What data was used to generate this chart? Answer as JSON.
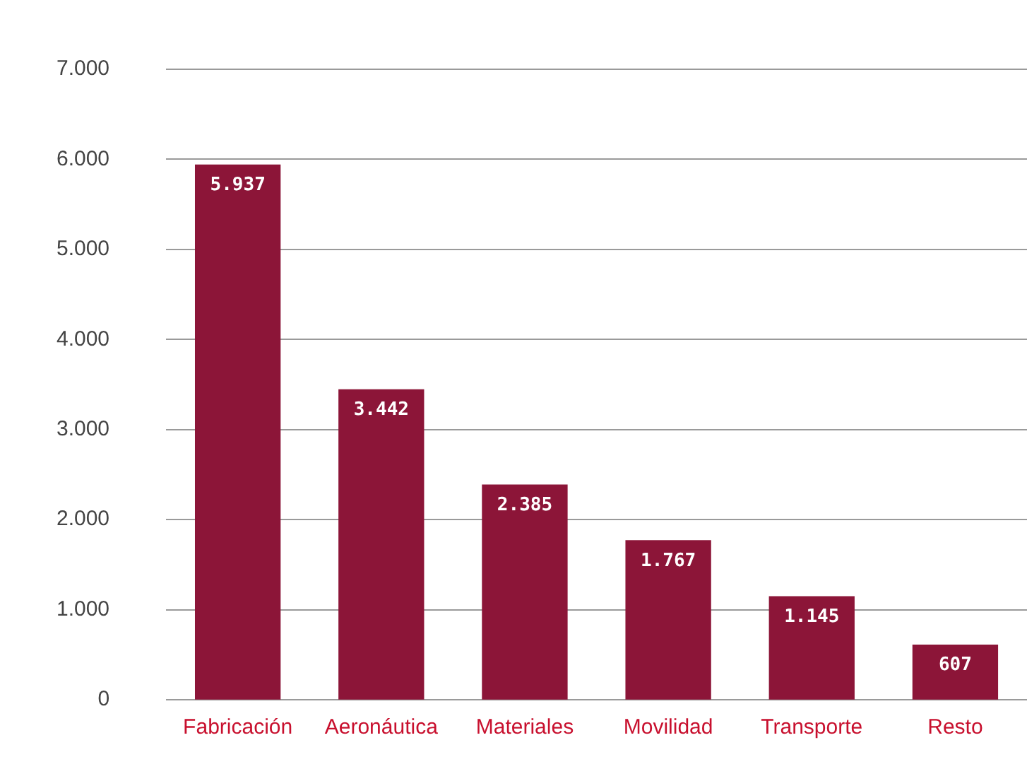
{
  "chart_data": {
    "type": "bar",
    "categories": [
      "Fabricación",
      "Aeronáutica",
      "Materiales",
      "Movilidad",
      "Transporte",
      "Resto"
    ],
    "values": [
      5937,
      3442,
      2385,
      1767,
      1145,
      607
    ],
    "value_labels": [
      "5.937",
      "3.442",
      "2.385",
      "1.767",
      "1.145",
      "607"
    ],
    "color": "#8c1538",
    "ylim": [
      0,
      7000
    ],
    "yticks": [
      {
        "value": 0,
        "label": "0"
      },
      {
        "value": 1000,
        "label": "1.000"
      },
      {
        "value": 2000,
        "label": "2.000"
      },
      {
        "value": 3000,
        "label": "3.000"
      },
      {
        "value": 4000,
        "label": "4.000"
      },
      {
        "value": 5000,
        "label": "5.000"
      },
      {
        "value": 6000,
        "label": "6.000"
      },
      {
        "value": 7000,
        "label": "7.000"
      }
    ],
    "grid": "y",
    "legend": false
  }
}
